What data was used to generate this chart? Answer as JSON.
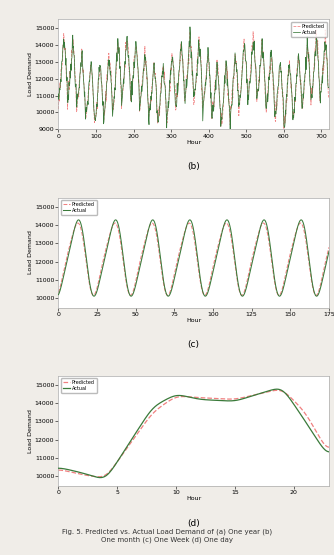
{
  "fig_caption": "Fig. 5. Predicted vs. Actual Load Demand of (a) One year (b)\nOne month (c) One Week (d) One day",
  "predicted_color": "#f08080",
  "actual_color": "#3a7a3a",
  "predicted_linestyle": "--",
  "actual_linestyle": "-",
  "linewidth_b": 0.55,
  "linewidth_c": 0.75,
  "linewidth_d": 0.9,
  "ylabel": "Load Demand",
  "xlabel": "Hour",
  "panel_b": {
    "xlim": [
      0,
      720
    ],
    "ylim": [
      9000,
      15500
    ],
    "xticks": [
      0,
      100,
      200,
      300,
      400,
      500,
      600,
      700
    ],
    "yticks": [
      9000,
      10000,
      11000,
      12000,
      13000,
      14000,
      15000
    ],
    "label": "(b)"
  },
  "panel_c": {
    "xlim": [
      0,
      175
    ],
    "ylim": [
      9500,
      15500
    ],
    "xticks": [
      0,
      25,
      50,
      75,
      100,
      125,
      150,
      175
    ],
    "yticks": [
      10000,
      11000,
      12000,
      13000,
      14000,
      15000
    ],
    "label": "(c)"
  },
  "panel_d": {
    "xlim": [
      0,
      23
    ],
    "ylim": [
      9500,
      15500
    ],
    "xticks": [
      0,
      5,
      10,
      15,
      20
    ],
    "yticks": [
      10000,
      11000,
      12000,
      13000,
      14000,
      15000
    ],
    "label": "(d)"
  },
  "legend_predicted": "Predicted",
  "legend_actual": "Actual",
  "background_color": "#ffffff",
  "fig_background": "#f0ede8"
}
